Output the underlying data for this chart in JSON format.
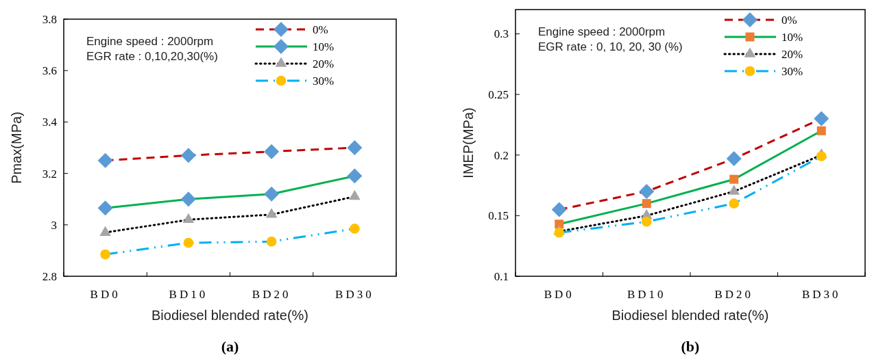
{
  "chart_data": [
    {
      "type": "line",
      "title": "(a)",
      "xlabel": "Biodiesel blended rate(%)",
      "ylabel": "Pmax(MPa)",
      "categories": [
        "BD0",
        "BD10",
        "BD20",
        "BD30"
      ],
      "ylim": [
        2.8,
        3.8
      ],
      "yticks": [
        2.8,
        3,
        3.2,
        3.4,
        3.6,
        3.8
      ],
      "grid": false,
      "legend": "top right",
      "annotations": [
        "Engine speed : 2000rpm",
        "EGR rate : 0,10,20,30(%)"
      ],
      "series": [
        {
          "name": "0%",
          "color": "#c00000",
          "marker": "diamond",
          "colors": [
            "#5b9bd5",
            "#5b9bd5",
            "#5b9bd5",
            "#5b9bd5"
          ],
          "line_style": "dashed",
          "values": [
            3.25,
            3.27,
            3.285,
            3.3
          ]
        },
        {
          "name": "10%",
          "color": "#00b050",
          "marker": "diamond",
          "colors": [
            "#5b9bd5",
            "#5b9bd5",
            "#5b9bd5",
            "#5b9bd5"
          ],
          "line_style": "solid",
          "values": [
            3.065,
            3.1,
            3.12,
            3.19
          ]
        },
        {
          "name": "20%",
          "color": "#000000",
          "marker": "triangle",
          "colors": [
            "#a5a5a5",
            "#a5a5a5",
            "#a5a5a5",
            "#a5a5a5"
          ],
          "line_style": "dotted",
          "values": [
            2.97,
            3.02,
            3.04,
            3.11
          ]
        },
        {
          "name": "30%",
          "color": "#00b0f0",
          "marker": "circle",
          "colors": [
            "#ffc000",
            "#ffc000",
            "#ffc000",
            "#ffc000"
          ],
          "line_style": "dashdot",
          "values": [
            2.885,
            2.93,
            2.935,
            2.985
          ]
        }
      ]
    },
    {
      "type": "line",
      "title": "(b)",
      "xlabel": "Biodiesel blended  rate(%)",
      "ylabel": "IMEP(MPa)",
      "categories": [
        "BD0",
        "BD10",
        "BD20",
        "BD30"
      ],
      "ylim": [
        0.1,
        0.32
      ],
      "yticks": [
        0.1,
        0.15,
        0.2,
        0.25,
        0.3
      ],
      "grid": false,
      "legend": "top right",
      "annotations": [
        "Engine speed : 2000rpm",
        "EGR rate : 0, 10, 20, 30 (%)"
      ],
      "series": [
        {
          "name": "0%",
          "color": "#c00000",
          "marker": "diamond",
          "colors": [
            "#5b9bd5",
            "#5b9bd5",
            "#5b9bd5",
            "#5b9bd5"
          ],
          "line_style": "dashed",
          "values": [
            0.155,
            0.17,
            0.197,
            0.23
          ]
        },
        {
          "name": "10%",
          "color": "#00b050",
          "marker": "square",
          "colors": [
            "#ed7d31",
            "#ed7d31",
            "#ed7d31",
            "#ed7d31"
          ],
          "line_style": "solid",
          "values": [
            0.143,
            0.16,
            0.18,
            0.22
          ]
        },
        {
          "name": "20%",
          "color": "#000000",
          "marker": "triangle",
          "colors": [
            "#a5a5a5",
            "#a5a5a5",
            "#a5a5a5",
            "#a5a5a5"
          ],
          "line_style": "dotted",
          "values": [
            0.137,
            0.15,
            0.17,
            0.2
          ]
        },
        {
          "name": "30%",
          "color": "#00b0f0",
          "marker": "circle",
          "colors": [
            "#ffc000",
            "#ffc000",
            "#ffc000",
            "#ffc000"
          ],
          "line_style": "dashdot",
          "values": [
            0.136,
            0.145,
            0.16,
            0.199
          ]
        }
      ]
    }
  ]
}
